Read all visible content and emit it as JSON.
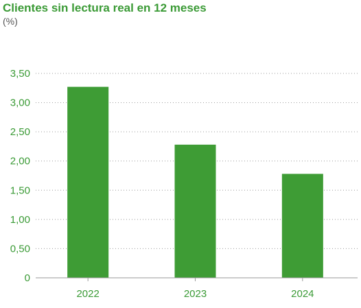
{
  "chart_data": {
    "type": "bar",
    "title": "Clientes sin lectura real en 12 meses",
    "subtitle": "(%)",
    "xlabel": "",
    "ylabel": "",
    "categories": [
      "2022",
      "2023",
      "2024"
    ],
    "values": [
      3.27,
      2.28,
      1.78
    ],
    "ylim": [
      0,
      3.5
    ],
    "yticks": [
      0,
      0.5,
      1.0,
      1.5,
      2.0,
      2.5,
      3.0,
      3.5
    ],
    "ytick_labels": [
      "0",
      "0,50",
      "1,00",
      "1,50",
      "2,00",
      "2,50",
      "3,00",
      "3,50"
    ],
    "grid": true,
    "legend": "none",
    "bar_color": "#3e9c35",
    "text_color": "#3a9a35",
    "grid_color": "#9a9a9a",
    "axis_color": "#9a9a9a"
  }
}
